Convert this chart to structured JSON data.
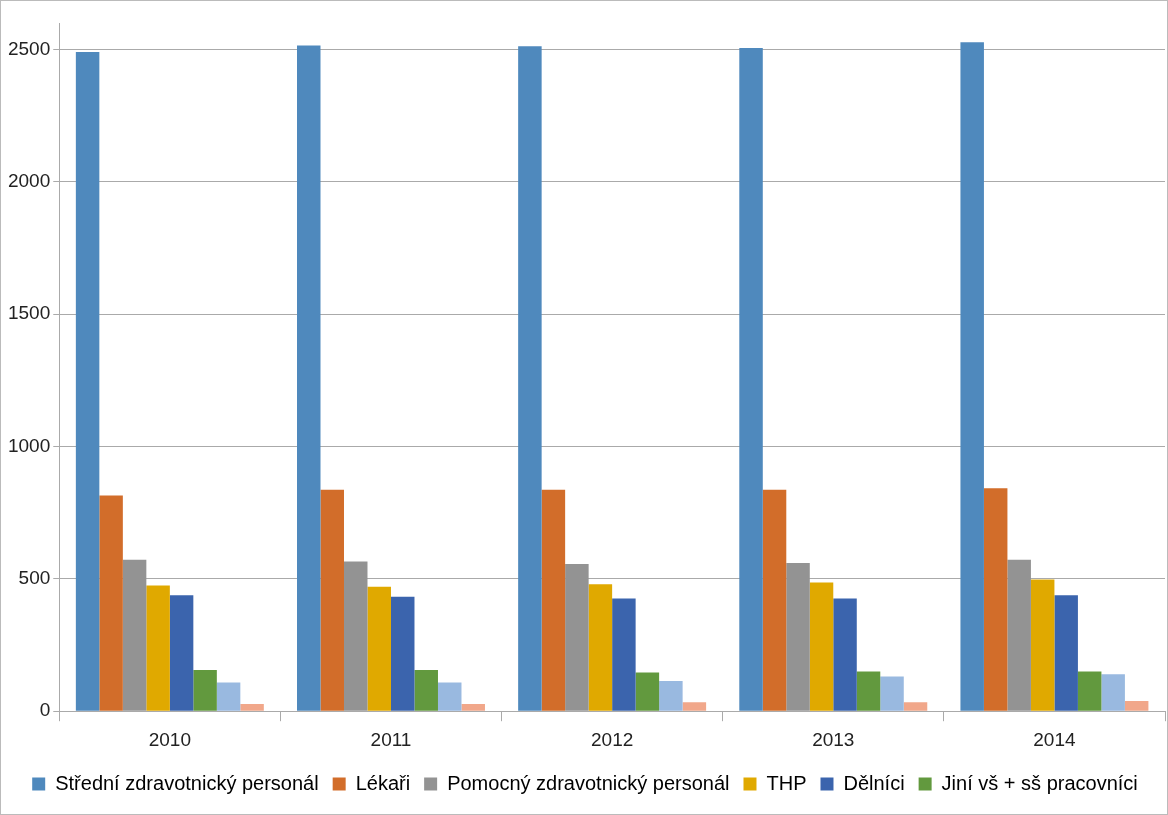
{
  "chart_data": {
    "type": "bar",
    "categories": [
      "2010",
      "2011",
      "2012",
      "2013",
      "2014"
    ],
    "series": [
      {
        "name": "Střední zdravotnický personál",
        "color": "#4f89bd",
        "values": [
          2490,
          2515,
          2512,
          2506,
          2527
        ]
      },
      {
        "name": "Lékaři",
        "color": "#d26d2a",
        "values": [
          815,
          837,
          837,
          837,
          842
        ]
      },
      {
        "name": "Pomocný zdravotnický personál",
        "color": "#939393",
        "values": [
          572,
          566,
          556,
          560,
          572
        ]
      },
      {
        "name": "THP",
        "color": "#e0a900",
        "values": [
          475,
          470,
          480,
          486,
          498
        ]
      },
      {
        "name": "Dělníci",
        "color": "#3b64ad",
        "values": [
          438,
          432,
          426,
          426,
          438
        ]
      },
      {
        "name": "Jiní vš + sš pracovníci",
        "color": "#62993e",
        "values": [
          156,
          156,
          146,
          150,
          150
        ]
      },
      {
        "color": "#99b9e0",
        "values": [
          108,
          108,
          114,
          131,
          140
        ]
      },
      {
        "color": "#f1a78a",
        "values": [
          27,
          27,
          34,
          34,
          39
        ]
      }
    ],
    "ylim": [
      0,
      2600
    ],
    "yticks": [
      0,
      500,
      1000,
      1500,
      2000,
      2500
    ],
    "grid": "y",
    "legend": "bottom"
  }
}
